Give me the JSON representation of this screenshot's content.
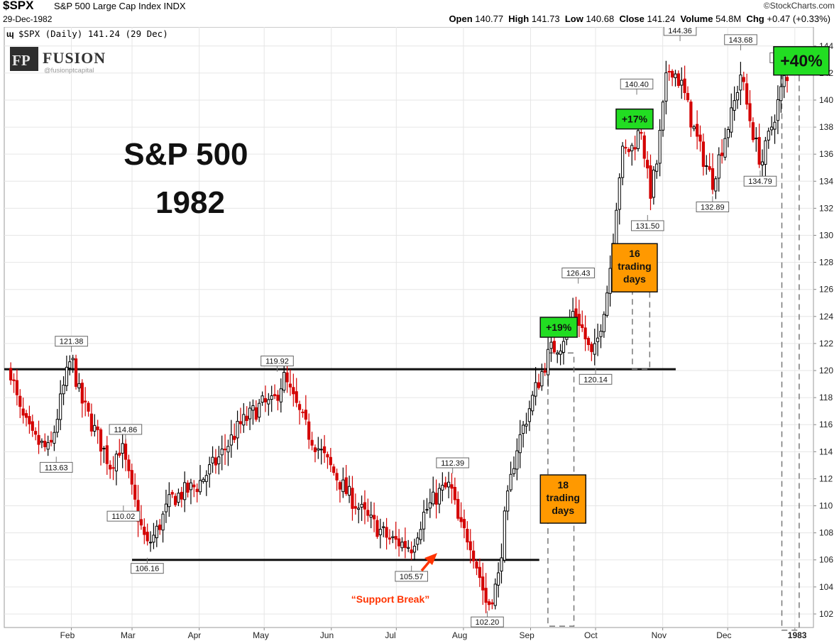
{
  "header": {
    "symbol": "$SPX",
    "name": "S&P 500 Large Cap Index",
    "exchange": "INDX",
    "date": "29-Dec-1982",
    "source": "©StockCharts.com",
    "open_label": "Open",
    "open": "140.77",
    "high_label": "High",
    "high": "141.73",
    "low_label": "Low",
    "low": "140.68",
    "close_label": "Close",
    "close": "141.24",
    "volume_label": "Volume",
    "volume": "54.8M",
    "chg_label": "Chg",
    "chg": "+0.47 (+0.33%)"
  },
  "legend_text": "$SPX (Daily) 141.24 (29 Dec)",
  "logo": {
    "mark": "FP",
    "name": "FUSION",
    "handle": "@fusionptcapital"
  },
  "colors": {
    "up": "#000000",
    "down": "#d40000",
    "green_box": "#22dd22",
    "orange_box": "#ff9900",
    "red_arrow": "#ff3300",
    "grid": "#e6e6e6"
  },
  "chart_data": {
    "type": "candlestick",
    "title": "S&P 500\n1982",
    "x_tick_labels": [
      "Feb",
      "Mar",
      "Apr",
      "May",
      "Jun",
      "Jul",
      "Aug",
      "Sep",
      "Oct",
      "Nov",
      "Dec",
      "1983"
    ],
    "y_ticks": [
      102,
      104,
      106,
      108,
      110,
      112,
      114,
      116,
      118,
      120,
      122,
      124,
      126,
      128,
      130,
      132,
      134,
      136,
      138,
      140,
      142,
      144
    ],
    "ylim": [
      101,
      145.3
    ],
    "grid": true,
    "price_points": [
      {
        "date": "1982-01-04",
        "price": 120.0
      },
      {
        "date": "1982-01-08",
        "price": 117.0
      },
      {
        "date": "1982-01-14",
        "price": 115.0
      },
      {
        "date": "1982-01-22",
        "price": 114.0
      },
      {
        "date": "1982-01-28",
        "price": 118.5
      },
      {
        "date": "1982-02-01",
        "price": 121.0
      },
      {
        "date": "1982-02-05",
        "price": 118.0
      },
      {
        "date": "1982-02-12",
        "price": 115.5
      },
      {
        "date": "1982-02-19",
        "price": 113.0
      },
      {
        "date": "1982-02-24",
        "price": 114.5
      },
      {
        "date": "1982-03-01",
        "price": 111.0
      },
      {
        "date": "1982-03-05",
        "price": 108.5
      },
      {
        "date": "1982-03-08",
        "price": 107.0
      },
      {
        "date": "1982-03-12",
        "price": 108.0
      },
      {
        "date": "1982-03-19",
        "price": 110.5
      },
      {
        "date": "1982-03-31",
        "price": 111.5
      },
      {
        "date": "1982-04-10",
        "price": 113.5
      },
      {
        "date": "1982-04-20",
        "price": 116.0
      },
      {
        "date": "1982-04-30",
        "price": 117.5
      },
      {
        "date": "1982-05-05",
        "price": 117.5
      },
      {
        "date": "1982-05-10",
        "price": 119.5
      },
      {
        "date": "1982-05-14",
        "price": 118.0
      },
      {
        "date": "1982-05-21",
        "price": 115.5
      },
      {
        "date": "1982-05-31",
        "price": 113.0
      },
      {
        "date": "1982-06-08",
        "price": 111.0
      },
      {
        "date": "1982-06-18",
        "price": 109.0
      },
      {
        "date": "1982-06-28",
        "price": 107.5
      },
      {
        "date": "1982-07-08",
        "price": 107.0
      },
      {
        "date": "1982-07-14",
        "price": 109.5
      },
      {
        "date": "1982-07-21",
        "price": 111.0
      },
      {
        "date": "1982-07-26",
        "price": 111.5
      },
      {
        "date": "1982-07-30",
        "price": 108.5
      },
      {
        "date": "1982-08-04",
        "price": 107.5
      },
      {
        "date": "1982-08-09",
        "price": 104.5
      },
      {
        "date": "1982-08-12",
        "price": 102.5
      },
      {
        "date": "1982-08-17",
        "price": 104.5
      },
      {
        "date": "1982-08-20",
        "price": 109.0
      },
      {
        "date": "1982-08-25",
        "price": 114.0
      },
      {
        "date": "1982-08-31",
        "price": 117.0
      },
      {
        "date": "1982-09-03",
        "price": 118.5
      },
      {
        "date": "1982-09-10",
        "price": 121.5
      },
      {
        "date": "1982-09-15",
        "price": 122.0
      },
      {
        "date": "1982-09-21",
        "price": 124.5
      },
      {
        "date": "1982-09-24",
        "price": 123.5
      },
      {
        "date": "1982-09-29",
        "price": 121.0
      },
      {
        "date": "1982-10-01",
        "price": 121.5
      },
      {
        "date": "1982-10-07",
        "price": 126.5
      },
      {
        "date": "1982-10-11",
        "price": 133.0
      },
      {
        "date": "1982-10-13",
        "price": 136.0
      },
      {
        "date": "1982-10-18",
        "price": 136.5
      },
      {
        "date": "1982-10-22",
        "price": 138.0
      },
      {
        "date": "1982-10-26",
        "price": 133.0
      },
      {
        "date": "1982-10-29",
        "price": 135.0
      },
      {
        "date": "1982-11-03",
        "price": 142.0
      },
      {
        "date": "1982-11-05",
        "price": 142.5
      },
      {
        "date": "1982-11-10",
        "price": 141.0
      },
      {
        "date": "1982-11-15",
        "price": 138.0
      },
      {
        "date": "1982-11-19",
        "price": 136.0
      },
      {
        "date": "1982-11-24",
        "price": 134.0
      },
      {
        "date": "1982-11-30",
        "price": 137.5
      },
      {
        "date": "1982-12-03",
        "price": 139.0
      },
      {
        "date": "1982-12-07",
        "price": 142.0
      },
      {
        "date": "1982-12-10",
        "price": 139.5
      },
      {
        "date": "1982-12-15",
        "price": 136.0
      },
      {
        "date": "1982-12-17",
        "price": 135.5
      },
      {
        "date": "1982-12-22",
        "price": 138.5
      },
      {
        "date": "1982-12-27",
        "price": 141.5
      },
      {
        "date": "1982-12-29",
        "price": 141.24
      }
    ],
    "callouts": [
      {
        "label": "121.38",
        "date": "1982-02-01",
        "price": 121.38,
        "pos": "above"
      },
      {
        "label": "113.63",
        "date": "1982-01-25",
        "price": 113.63,
        "pos": "below"
      },
      {
        "label": "114.86",
        "date": "1982-02-26",
        "price": 114.86,
        "pos": "above"
      },
      {
        "label": "110.02",
        "date": "1982-02-25",
        "price": 110.02,
        "pos": "below"
      },
      {
        "label": "106.16",
        "date": "1982-03-08",
        "price": 106.16,
        "pos": "below"
      },
      {
        "label": "119.92",
        "date": "1982-05-07",
        "price": 119.92,
        "pos": "above"
      },
      {
        "label": "105.57",
        "date": "1982-07-08",
        "price": 105.57,
        "pos": "below"
      },
      {
        "label": "112.39",
        "date": "1982-07-27",
        "price": 112.39,
        "pos": "above"
      },
      {
        "label": "102.20",
        "date": "1982-08-12",
        "price": 102.2,
        "pos": "below"
      },
      {
        "label": "126.43",
        "date": "1982-09-23",
        "price": 126.43,
        "pos": "above"
      },
      {
        "label": "120.14",
        "date": "1982-10-01",
        "price": 120.14,
        "pos": "below"
      },
      {
        "label": "140.40",
        "date": "1982-10-20",
        "price": 140.4,
        "pos": "above"
      },
      {
        "label": "131.50",
        "date": "1982-10-25",
        "price": 131.5,
        "pos": "below"
      },
      {
        "label": "144.36",
        "date": "1982-11-09",
        "price": 144.36,
        "pos": "above"
      },
      {
        "label": "132.89",
        "date": "1982-11-24",
        "price": 132.89,
        "pos": "below"
      },
      {
        "label": "143.68",
        "date": "1982-12-07",
        "price": 143.68,
        "pos": "above"
      },
      {
        "label": "134.79",
        "date": "1982-12-16",
        "price": 134.79,
        "pos": "below"
      },
      {
        "label": "142.34",
        "date": "1982-12-28",
        "price": 142.34,
        "pos": "above"
      }
    ],
    "support_lines": [
      {
        "price": 120.1,
        "from": "1982-01-01",
        "to": "1982-11-07"
      },
      {
        "price": 106.0,
        "from": "1982-03-01",
        "to": "1982-09-05"
      }
    ],
    "annotations": {
      "pct_boxes": [
        {
          "label": "+19%",
          "date": "1982-09-14",
          "price": 123.2
        },
        {
          "label": "+17%",
          "date": "1982-10-19",
          "price": 138.6
        },
        {
          "label": "+40%",
          "date": "1983-01-04",
          "price": 142.9
        }
      ],
      "trading_days": [
        {
          "label": "18\ntrading\ndays",
          "date": "1982-09-16",
          "price": 110.5
        },
        {
          "label": "16\ntrading\ndays",
          "date": "1982-10-19",
          "price": 127.6
        }
      ],
      "support_break": "“Support Break”",
      "chart_title": "S&P 500\n1982"
    }
  }
}
